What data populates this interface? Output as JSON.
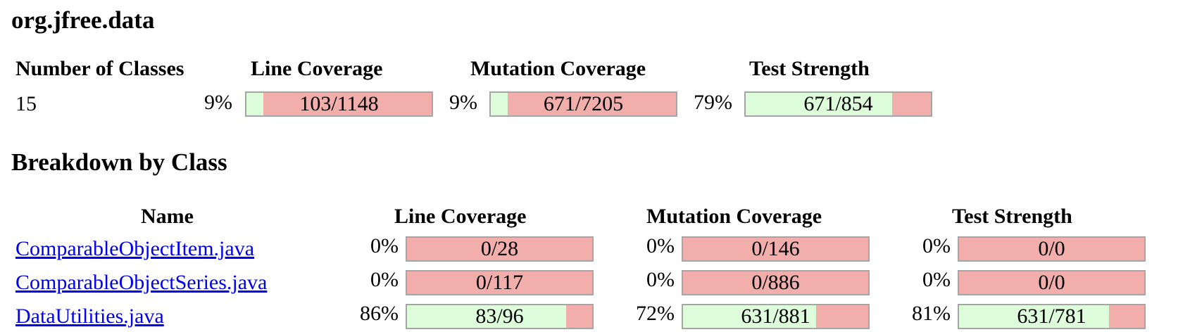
{
  "package_title": "org.jfree.data",
  "summary": {
    "headers": {
      "classes": "Number of Classes",
      "line": "Line Coverage",
      "mutation": "Mutation Coverage",
      "strength": "Test Strength"
    },
    "classes": "15",
    "line": {
      "pct": "9%",
      "label": "103/1148",
      "fraction": 0.09
    },
    "mutation": {
      "pct": "9%",
      "label": "671/7205",
      "fraction": 0.09
    },
    "strength": {
      "pct": "79%",
      "label": "671/854",
      "fraction": 0.79
    }
  },
  "breakdown_title": "Breakdown by Class",
  "table": {
    "headers": {
      "name": "Name",
      "line": "Line Coverage",
      "mutation": "Mutation Coverage",
      "strength": "Test Strength"
    },
    "rows": [
      {
        "name": "ComparableObjectItem.java",
        "line": {
          "pct": "0%",
          "label": "0/28",
          "fraction": 0
        },
        "mutation": {
          "pct": "0%",
          "label": "0/146",
          "fraction": 0
        },
        "strength": {
          "pct": "0%",
          "label": "0/0",
          "fraction": 0
        }
      },
      {
        "name": "ComparableObjectSeries.java",
        "line": {
          "pct": "0%",
          "label": "0/117",
          "fraction": 0
        },
        "mutation": {
          "pct": "0%",
          "label": "0/886",
          "fraction": 0
        },
        "strength": {
          "pct": "0%",
          "label": "0/0",
          "fraction": 0
        }
      },
      {
        "name": "DataUtilities.java",
        "line": {
          "pct": "86%",
          "label": "83/96",
          "fraction": 0.86
        },
        "mutation": {
          "pct": "72%",
          "label": "631/881",
          "fraction": 0.72
        },
        "strength": {
          "pct": "81%",
          "label": "631/781",
          "fraction": 0.81
        }
      }
    ]
  },
  "colors": {
    "covered": "#ddfddb",
    "uncovered": "#f2aeab",
    "link": "#0000ee",
    "bar_border": "#a5a5a5"
  }
}
